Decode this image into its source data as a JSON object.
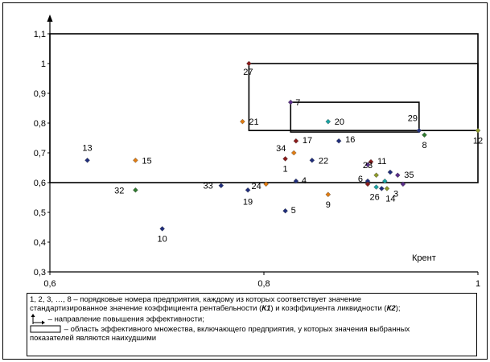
{
  "chart_data": {
    "type": "scatter",
    "xlabel": "Крент",
    "ylabel": "",
    "xlim": [
      0.6,
      1.0
    ],
    "ylim": [
      0.3,
      1.1
    ],
    "xticks": [
      "0,6",
      "0,8",
      "1"
    ],
    "yticks": [
      "0,3",
      "0,4",
      "0,5",
      "0,6",
      "0,7",
      "0,8",
      "0,9",
      "1",
      "1,1"
    ],
    "grid": false,
    "colors": {
      "navy": "#1f2d7b",
      "orange": "#e07c12",
      "green": "#2f7a2f",
      "teal": "#1aa3a3",
      "dark_red": "#8b1a1a",
      "olive": "#8e9a2a",
      "purple": "#5b2f8a",
      "frame": "#000000"
    },
    "points": [
      {
        "label": "1",
        "x": 0.82,
        "y": 0.68,
        "color": "#8b1a1a"
      },
      {
        "label": "3",
        "x": 0.915,
        "y": 0.58,
        "color": "#8e9a2a"
      },
      {
        "label": "4",
        "x": 0.83,
        "y": 0.605,
        "color": "#1f2d7b"
      },
      {
        "label": "5",
        "x": 0.82,
        "y": 0.505,
        "color": "#1f2d7b"
      },
      {
        "label": "6",
        "x": 0.897,
        "y": 0.605,
        "color": "#1f2d7b"
      },
      {
        "label": "7",
        "x": 0.825,
        "y": 0.87,
        "color": "#5b2f8a"
      },
      {
        "label": "8",
        "x": 0.95,
        "y": 0.76,
        "color": "#2f7a2f"
      },
      {
        "label": "9",
        "x": 0.86,
        "y": 0.56,
        "color": "#e07c12"
      },
      {
        "label": "10",
        "x": 0.705,
        "y": 0.445,
        "color": "#1f2d7b"
      },
      {
        "label": "11",
        "x": 0.9,
        "y": 0.67,
        "color": "#8b1a1a"
      },
      {
        "label": "12",
        "x": 1.0,
        "y": 0.775,
        "color": "#8e9a2a"
      },
      {
        "label": "13",
        "x": 0.635,
        "y": 0.675,
        "color": "#1f2d7b"
      },
      {
        "label": "14",
        "x": 0.91,
        "y": 0.58,
        "color": "#1f2d7b"
      },
      {
        "label": "15",
        "x": 0.68,
        "y": 0.675,
        "color": "#e07c12"
      },
      {
        "label": "16",
        "x": 0.87,
        "y": 0.74,
        "color": "#1f2d7b"
      },
      {
        "label": "17",
        "x": 0.83,
        "y": 0.74,
        "color": "#8b1a1a"
      },
      {
        "label": "19",
        "x": 0.785,
        "y": 0.575,
        "color": "#1f2d7b"
      },
      {
        "label": "20",
        "x": 0.86,
        "y": 0.805,
        "color": "#1aa3a3"
      },
      {
        "label": "21",
        "x": 0.78,
        "y": 0.805,
        "color": "#e07c12"
      },
      {
        "label": "22",
        "x": 0.845,
        "y": 0.675,
        "color": "#1f2d7b"
      },
      {
        "label": "23",
        "x": 0.897,
        "y": 0.66,
        "color": "#5b2f8a"
      },
      {
        "label": "24",
        "x": 0.802,
        "y": 0.595,
        "color": "#e07c12"
      },
      {
        "label": "26",
        "x": 0.905,
        "y": 0.585,
        "color": "#1aa3a3"
      },
      {
        "label": "27",
        "x": 0.786,
        "y": 1.0,
        "color": "#8b1a1a"
      },
      {
        "label": "29",
        "x": 0.945,
        "y": 0.775,
        "color": "#1f2d7b"
      },
      {
        "label": "32",
        "x": 0.68,
        "y": 0.575,
        "color": "#2f7a2f"
      },
      {
        "label": "33",
        "x": 0.76,
        "y": 0.59,
        "color": "#1f2d7b"
      },
      {
        "label": "34",
        "x": 0.828,
        "y": 0.7,
        "color": "#e07c12"
      },
      {
        "label": "35",
        "x": 0.925,
        "y": 0.625,
        "color": "#5b2f8a"
      },
      {
        "label": "",
        "x": 0.905,
        "y": 0.625,
        "color": "#8e9a2a"
      },
      {
        "label": "",
        "x": 0.918,
        "y": 0.635,
        "color": "#1f2d7b"
      },
      {
        "label": "",
        "x": 0.913,
        "y": 0.605,
        "color": "#1aa3a3"
      },
      {
        "label": "",
        "x": 0.897,
        "y": 0.595,
        "color": "#8b1a1a"
      },
      {
        "label": "",
        "x": 0.93,
        "y": 0.595,
        "color": "#5b2f8a"
      }
    ],
    "regions": [
      {
        "x": [
          0.6,
          1.0
        ],
        "y": [
          0.6,
          1.1
        ]
      },
      {
        "x": [
          0.786,
          1.0
        ],
        "y": [
          0.775,
          1.0
        ]
      },
      {
        "x": [
          0.825,
          0.945
        ],
        "y": [
          0.77,
          0.87
        ]
      }
    ]
  },
  "legend": {
    "line1": "1, 2, 3, …, 8 – порядковые номера предприятия, каждому из которых соответствует значение",
    "line2_pre": "стандартизированное значение коэффициента рентабельности (",
    "k1": "К1",
    "line2_mid": ") и коэффициента ликвидности (",
    "k2": "К2",
    "line2_post": ");",
    "arrow_text": "– направление повышения эффективности;",
    "rect_text": "– область эффективного множества, включающего предприятия, у которых значения выбранных",
    "rect_text2": "показателей являются наихудшими"
  }
}
